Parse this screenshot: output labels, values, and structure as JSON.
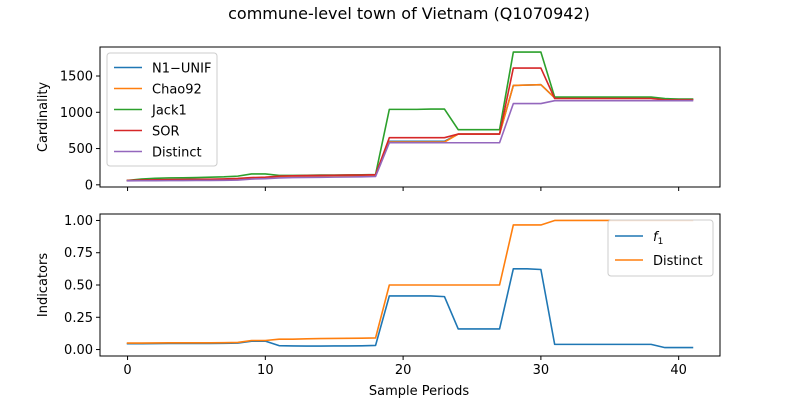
{
  "figure": {
    "title": "commune-level town of Vietnam (Q1070942)"
  },
  "chart_data": [
    {
      "type": "line",
      "ylabel": "Cardinality",
      "xlabel": "",
      "xlim": [
        -2,
        43
      ],
      "ylim": [
        -30,
        1900
      ],
      "xticks": [
        0,
        10,
        20,
        30,
        40
      ],
      "show_xtick_labels": false,
      "yticks": [
        0,
        500,
        1000,
        1500
      ],
      "legend_position": "upper-left",
      "x": [
        0,
        1,
        2,
        3,
        4,
        5,
        6,
        7,
        8,
        9,
        10,
        11,
        12,
        13,
        14,
        15,
        16,
        17,
        18,
        19,
        20,
        21,
        22,
        23,
        24,
        25,
        26,
        27,
        28,
        29,
        30,
        31,
        32,
        33,
        34,
        35,
        36,
        37,
        38,
        39,
        40,
        41
      ],
      "series": [
        {
          "name": "N1−UNIF",
          "color": "#1f77b4",
          "values": [
            60,
            62,
            63,
            64,
            65,
            66,
            67,
            70,
            75,
            90,
            95,
            105,
            110,
            112,
            115,
            118,
            120,
            122,
            125,
            600,
            600,
            600,
            600,
            600,
            700,
            700,
            700,
            700,
            1370,
            1375,
            1380,
            1200,
            1200,
            1200,
            1200,
            1200,
            1200,
            1200,
            1200,
            1180,
            1180,
            1180
          ]
        },
        {
          "name": "Chao92",
          "color": "#ff7f0e",
          "values": [
            60,
            62,
            63,
            64,
            65,
            66,
            67,
            70,
            75,
            90,
            95,
            105,
            110,
            112,
            115,
            118,
            120,
            122,
            125,
            590,
            590,
            590,
            590,
            590,
            700,
            700,
            700,
            700,
            1370,
            1375,
            1380,
            1200,
            1200,
            1200,
            1200,
            1200,
            1200,
            1200,
            1200,
            1180,
            1180,
            1180
          ]
        },
        {
          "name": "Jack1",
          "color": "#2ca02c",
          "values": [
            60,
            80,
            90,
            95,
            97,
            100,
            105,
            110,
            120,
            150,
            150,
            130,
            130,
            132,
            135,
            135,
            137,
            138,
            142,
            1040,
            1040,
            1040,
            1045,
            1045,
            760,
            760,
            760,
            760,
            1830,
            1830,
            1830,
            1210,
            1210,
            1210,
            1210,
            1210,
            1210,
            1210,
            1210,
            1190,
            1180,
            1180
          ]
        },
        {
          "name": "SOR",
          "color": "#d62728",
          "values": [
            60,
            65,
            70,
            72,
            74,
            76,
            78,
            82,
            88,
            100,
            105,
            120,
            125,
            127,
            130,
            132,
            134,
            135,
            140,
            650,
            650,
            650,
            650,
            650,
            700,
            700,
            700,
            700,
            1610,
            1610,
            1610,
            1190,
            1190,
            1190,
            1190,
            1190,
            1190,
            1190,
            1190,
            1170,
            1170,
            1170
          ]
        },
        {
          "name": "Distinct",
          "color": "#9467bd",
          "values": [
            55,
            56,
            57,
            58,
            59,
            60,
            61,
            62,
            65,
            80,
            85,
            95,
            100,
            102,
            104,
            106,
            108,
            110,
            115,
            580,
            580,
            580,
            580,
            580,
            580,
            580,
            580,
            580,
            1120,
            1120,
            1120,
            1160,
            1160,
            1160,
            1160,
            1160,
            1160,
            1160,
            1160,
            1160,
            1160,
            1160
          ]
        }
      ]
    },
    {
      "type": "line",
      "ylabel": "Indicators",
      "xlabel": "Sample Periods",
      "xlim": [
        -2,
        43
      ],
      "ylim": [
        -0.05,
        1.05
      ],
      "xticks": [
        0,
        10,
        20,
        30,
        40
      ],
      "show_xtick_labels": true,
      "yticks": [
        0.0,
        0.25,
        0.5,
        0.75,
        1.0
      ],
      "ytick_labels": [
        "0.00",
        "0.25",
        "0.50",
        "0.75",
        "1.00"
      ],
      "legend_position": "upper-right",
      "x": [
        0,
        1,
        2,
        3,
        4,
        5,
        6,
        7,
        8,
        9,
        10,
        11,
        12,
        13,
        14,
        15,
        16,
        17,
        18,
        19,
        20,
        21,
        22,
        23,
        24,
        25,
        26,
        27,
        28,
        29,
        30,
        31,
        32,
        33,
        34,
        35,
        36,
        37,
        38,
        39,
        40,
        41
      ],
      "series": [
        {
          "name": "f1",
          "label_main": "f",
          "label_sub": "1",
          "color": "#1f77b4",
          "values": [
            0.045,
            0.045,
            0.046,
            0.047,
            0.047,
            0.047,
            0.047,
            0.048,
            0.05,
            0.065,
            0.065,
            0.03,
            0.028,
            0.027,
            0.027,
            0.028,
            0.028,
            0.029,
            0.032,
            0.415,
            0.415,
            0.415,
            0.415,
            0.41,
            0.16,
            0.16,
            0.16,
            0.16,
            0.625,
            0.625,
            0.62,
            0.04,
            0.04,
            0.04,
            0.04,
            0.04,
            0.04,
            0.04,
            0.04,
            0.015,
            0.015,
            0.015
          ]
        },
        {
          "name": "Distinct",
          "color": "#ff7f0e",
          "values": [
            0.05,
            0.05,
            0.051,
            0.052,
            0.052,
            0.052,
            0.052,
            0.053,
            0.055,
            0.07,
            0.07,
            0.08,
            0.08,
            0.083,
            0.085,
            0.086,
            0.087,
            0.088,
            0.09,
            0.5,
            0.5,
            0.5,
            0.5,
            0.5,
            0.5,
            0.5,
            0.5,
            0.5,
            0.965,
            0.965,
            0.965,
            1.0,
            1.0,
            1.0,
            1.0,
            1.0,
            1.0,
            1.0,
            1.0,
            1.0,
            1.0,
            1.0
          ]
        }
      ]
    }
  ]
}
